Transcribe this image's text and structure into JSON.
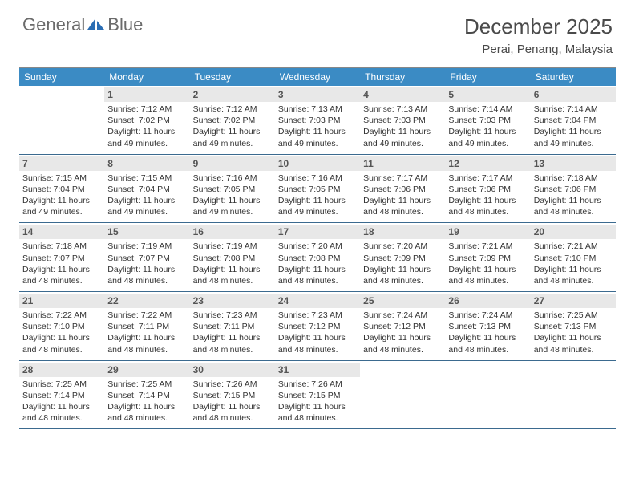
{
  "brand": {
    "part1": "General",
    "part2": "Blue"
  },
  "title": "December 2025",
  "location": "Perai, Penang, Malaysia",
  "colors": {
    "header_bg": "#3b8bc4",
    "daynum_bg": "#e8e8e8",
    "rule": "#3b6a8f",
    "logo_text": "#6b6b6b",
    "logo_shape": "#2a6db3"
  },
  "dow": [
    "Sunday",
    "Monday",
    "Tuesday",
    "Wednesday",
    "Thursday",
    "Friday",
    "Saturday"
  ],
  "weeks": [
    [
      {
        "n": "",
        "sr": "",
        "ss": "",
        "dl": ""
      },
      {
        "n": "1",
        "sr": "Sunrise: 7:12 AM",
        "ss": "Sunset: 7:02 PM",
        "dl": "Daylight: 11 hours and 49 minutes."
      },
      {
        "n": "2",
        "sr": "Sunrise: 7:12 AM",
        "ss": "Sunset: 7:02 PM",
        "dl": "Daylight: 11 hours and 49 minutes."
      },
      {
        "n": "3",
        "sr": "Sunrise: 7:13 AM",
        "ss": "Sunset: 7:03 PM",
        "dl": "Daylight: 11 hours and 49 minutes."
      },
      {
        "n": "4",
        "sr": "Sunrise: 7:13 AM",
        "ss": "Sunset: 7:03 PM",
        "dl": "Daylight: 11 hours and 49 minutes."
      },
      {
        "n": "5",
        "sr": "Sunrise: 7:14 AM",
        "ss": "Sunset: 7:03 PM",
        "dl": "Daylight: 11 hours and 49 minutes."
      },
      {
        "n": "6",
        "sr": "Sunrise: 7:14 AM",
        "ss": "Sunset: 7:04 PM",
        "dl": "Daylight: 11 hours and 49 minutes."
      }
    ],
    [
      {
        "n": "7",
        "sr": "Sunrise: 7:15 AM",
        "ss": "Sunset: 7:04 PM",
        "dl": "Daylight: 11 hours and 49 minutes."
      },
      {
        "n": "8",
        "sr": "Sunrise: 7:15 AM",
        "ss": "Sunset: 7:04 PM",
        "dl": "Daylight: 11 hours and 49 minutes."
      },
      {
        "n": "9",
        "sr": "Sunrise: 7:16 AM",
        "ss": "Sunset: 7:05 PM",
        "dl": "Daylight: 11 hours and 49 minutes."
      },
      {
        "n": "10",
        "sr": "Sunrise: 7:16 AM",
        "ss": "Sunset: 7:05 PM",
        "dl": "Daylight: 11 hours and 49 minutes."
      },
      {
        "n": "11",
        "sr": "Sunrise: 7:17 AM",
        "ss": "Sunset: 7:06 PM",
        "dl": "Daylight: 11 hours and 48 minutes."
      },
      {
        "n": "12",
        "sr": "Sunrise: 7:17 AM",
        "ss": "Sunset: 7:06 PM",
        "dl": "Daylight: 11 hours and 48 minutes."
      },
      {
        "n": "13",
        "sr": "Sunrise: 7:18 AM",
        "ss": "Sunset: 7:06 PM",
        "dl": "Daylight: 11 hours and 48 minutes."
      }
    ],
    [
      {
        "n": "14",
        "sr": "Sunrise: 7:18 AM",
        "ss": "Sunset: 7:07 PM",
        "dl": "Daylight: 11 hours and 48 minutes."
      },
      {
        "n": "15",
        "sr": "Sunrise: 7:19 AM",
        "ss": "Sunset: 7:07 PM",
        "dl": "Daylight: 11 hours and 48 minutes."
      },
      {
        "n": "16",
        "sr": "Sunrise: 7:19 AM",
        "ss": "Sunset: 7:08 PM",
        "dl": "Daylight: 11 hours and 48 minutes."
      },
      {
        "n": "17",
        "sr": "Sunrise: 7:20 AM",
        "ss": "Sunset: 7:08 PM",
        "dl": "Daylight: 11 hours and 48 minutes."
      },
      {
        "n": "18",
        "sr": "Sunrise: 7:20 AM",
        "ss": "Sunset: 7:09 PM",
        "dl": "Daylight: 11 hours and 48 minutes."
      },
      {
        "n": "19",
        "sr": "Sunrise: 7:21 AM",
        "ss": "Sunset: 7:09 PM",
        "dl": "Daylight: 11 hours and 48 minutes."
      },
      {
        "n": "20",
        "sr": "Sunrise: 7:21 AM",
        "ss": "Sunset: 7:10 PM",
        "dl": "Daylight: 11 hours and 48 minutes."
      }
    ],
    [
      {
        "n": "21",
        "sr": "Sunrise: 7:22 AM",
        "ss": "Sunset: 7:10 PM",
        "dl": "Daylight: 11 hours and 48 minutes."
      },
      {
        "n": "22",
        "sr": "Sunrise: 7:22 AM",
        "ss": "Sunset: 7:11 PM",
        "dl": "Daylight: 11 hours and 48 minutes."
      },
      {
        "n": "23",
        "sr": "Sunrise: 7:23 AM",
        "ss": "Sunset: 7:11 PM",
        "dl": "Daylight: 11 hours and 48 minutes."
      },
      {
        "n": "24",
        "sr": "Sunrise: 7:23 AM",
        "ss": "Sunset: 7:12 PM",
        "dl": "Daylight: 11 hours and 48 minutes."
      },
      {
        "n": "25",
        "sr": "Sunrise: 7:24 AM",
        "ss": "Sunset: 7:12 PM",
        "dl": "Daylight: 11 hours and 48 minutes."
      },
      {
        "n": "26",
        "sr": "Sunrise: 7:24 AM",
        "ss": "Sunset: 7:13 PM",
        "dl": "Daylight: 11 hours and 48 minutes."
      },
      {
        "n": "27",
        "sr": "Sunrise: 7:25 AM",
        "ss": "Sunset: 7:13 PM",
        "dl": "Daylight: 11 hours and 48 minutes."
      }
    ],
    [
      {
        "n": "28",
        "sr": "Sunrise: 7:25 AM",
        "ss": "Sunset: 7:14 PM",
        "dl": "Daylight: 11 hours and 48 minutes."
      },
      {
        "n": "29",
        "sr": "Sunrise: 7:25 AM",
        "ss": "Sunset: 7:14 PM",
        "dl": "Daylight: 11 hours and 48 minutes."
      },
      {
        "n": "30",
        "sr": "Sunrise: 7:26 AM",
        "ss": "Sunset: 7:15 PM",
        "dl": "Daylight: 11 hours and 48 minutes."
      },
      {
        "n": "31",
        "sr": "Sunrise: 7:26 AM",
        "ss": "Sunset: 7:15 PM",
        "dl": "Daylight: 11 hours and 48 minutes."
      },
      {
        "n": "",
        "sr": "",
        "ss": "",
        "dl": ""
      },
      {
        "n": "",
        "sr": "",
        "ss": "",
        "dl": ""
      },
      {
        "n": "",
        "sr": "",
        "ss": "",
        "dl": ""
      }
    ]
  ]
}
